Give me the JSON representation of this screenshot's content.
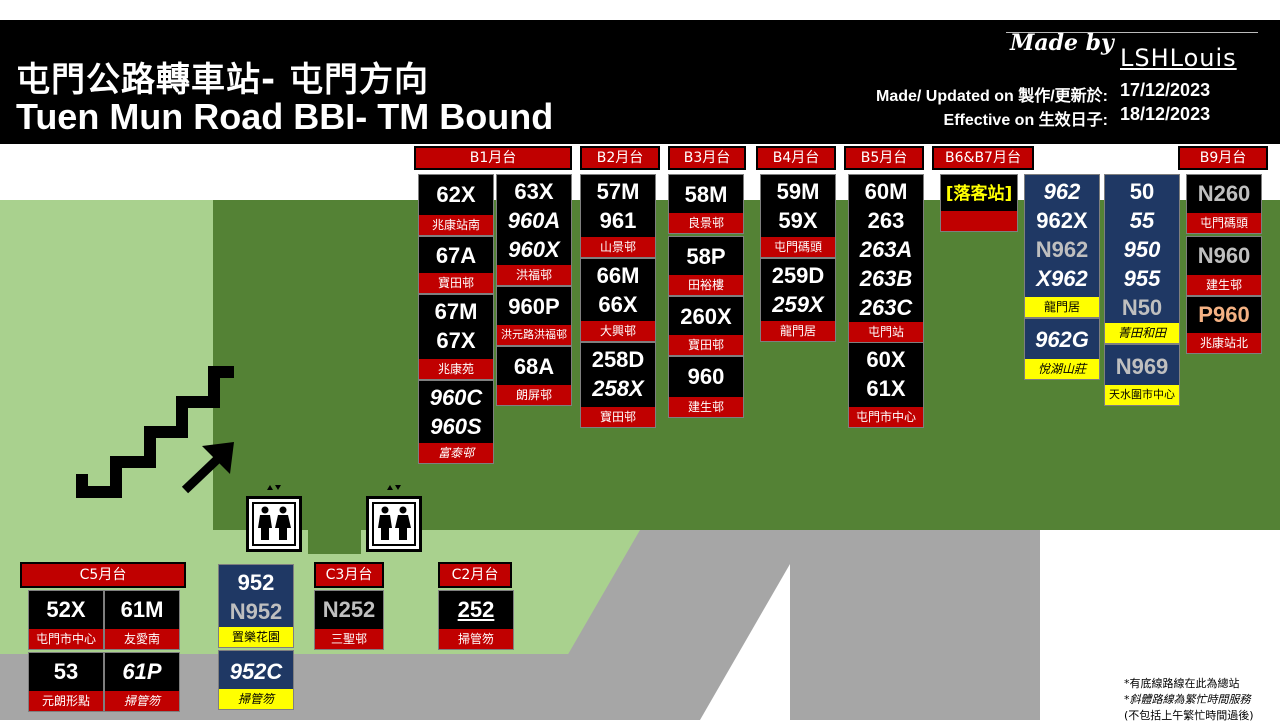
{
  "header": {
    "title_zh": "屯門公路轉車站- 屯門方向",
    "title_en": "Tuen Mun Road BBI- TM Bound",
    "made_by_label": "Made by",
    "author": "LSHLouis",
    "updated_label": "Made/ Updated on 製作/更新於:",
    "updated_date": "17/12/2023",
    "effective_label": "Effective on 生效日子:",
    "effective_date": "18/12/2023"
  },
  "colors": {
    "header_bg": "#000000",
    "platform_red": "#c00000",
    "grass_light": "#a9d18e",
    "grass_dark": "#548235",
    "road_grey": "#a6a6a6",
    "franchise_blue": "#1f3864",
    "terminus_yellow": "#ffff00"
  },
  "platforms": {
    "b1": {
      "label": "B1月台"
    },
    "b2": {
      "label": "B2月台"
    },
    "b3": {
      "label": "B3月台"
    },
    "b4": {
      "label": "B4月台"
    },
    "b5": {
      "label": "B5月台"
    },
    "b6b7": {
      "label": "B6&B7月台",
      "alight": "[落客站]"
    },
    "b9": {
      "label": "B9月台"
    },
    "c5": {
      "label": "C5月台"
    },
    "c3": {
      "label": "C3月台"
    },
    "c2": {
      "label": "C2月台"
    }
  },
  "cards": {
    "b1a": {
      "routes": [
        "62X"
      ],
      "dest": "兆康站南"
    },
    "b1b": {
      "routes": [
        "67A"
      ],
      "dest": "寶田邨"
    },
    "b1c": {
      "routes": [
        "67M",
        "67X"
      ],
      "dest": "兆康苑"
    },
    "b1d": {
      "routes": [
        "960C",
        "960S"
      ],
      "dest": "富泰邨"
    },
    "b1e": {
      "routes": [
        "63X",
        "960A",
        "960X"
      ],
      "dest": "洪福邨"
    },
    "b1f": {
      "routes": [
        "960P"
      ],
      "dest": "洪元路洪福邨"
    },
    "b1g": {
      "routes": [
        "68A"
      ],
      "dest": "朗屏邨"
    },
    "b2a": {
      "routes": [
        "57M",
        "961"
      ],
      "dest": "山景邨"
    },
    "b2b": {
      "routes": [
        "66M",
        "66X"
      ],
      "dest": "大興邨"
    },
    "b2c": {
      "routes": [
        "258D",
        "258X"
      ],
      "dest": "寶田邨"
    },
    "b3a": {
      "routes": [
        "58M"
      ],
      "dest": "良景邨"
    },
    "b3b": {
      "routes": [
        "58P"
      ],
      "dest": "田裕樓"
    },
    "b3c": {
      "routes": [
        "260X"
      ],
      "dest": "寶田邨"
    },
    "b3d": {
      "routes": [
        "960"
      ],
      "dest": "建生邨"
    },
    "b4a": {
      "routes": [
        "59M",
        "59X"
      ],
      "dest": "屯門碼頭"
    },
    "b4b": {
      "routes": [
        "259D",
        "259X"
      ],
      "dest": "龍門居"
    },
    "b5a": {
      "routes": [
        "60M",
        "263",
        "263A",
        "263B",
        "263C"
      ],
      "dest": "屯門站"
    },
    "b5b": {
      "routes": [
        "60X",
        "61X"
      ],
      "dest": "屯門市中心"
    },
    "b6a": {
      "routes": [
        "962",
        "962X",
        "N962",
        "X962"
      ],
      "dest": "龍門居"
    },
    "b6b": {
      "routes": [
        "962G"
      ],
      "dest": "悅湖山莊"
    },
    "b7a": {
      "routes": [
        "50",
        "55",
        "950",
        "955",
        "N50"
      ],
      "dest": "菁田和田"
    },
    "b7b": {
      "routes": [
        "N969"
      ],
      "dest": "天水圍市中心"
    },
    "b9a": {
      "routes": [
        "N260"
      ],
      "dest": "屯門碼頭"
    },
    "b9b": {
      "routes": [
        "N960"
      ],
      "dest": "建生邨"
    },
    "b9c": {
      "routes": [
        "P960"
      ],
      "dest": "兆康站北"
    },
    "c5a": {
      "routes": [
        "52X"
      ],
      "dest": "屯門市中心"
    },
    "c5b": {
      "routes": [
        "61M"
      ],
      "dest": "友愛南"
    },
    "c5c": {
      "routes": [
        "53"
      ],
      "dest": "元朗形點"
    },
    "c5d": {
      "routes": [
        "61P"
      ],
      "dest": "掃管笏"
    },
    "c4a": {
      "routes": [
        "952",
        "N952"
      ],
      "dest": "置樂花園"
    },
    "c4b": {
      "routes": [
        "952C"
      ],
      "dest": "掃管笏"
    },
    "c3a": {
      "routes": [
        "N252"
      ],
      "dest": "三聖邨"
    },
    "c2a": {
      "routes": [
        "252"
      ],
      "dest": "掃管笏"
    }
  },
  "notes": {
    "line1": "*有底線路線在此為總站",
    "line2": "*斜體路線為繁忙時間服務",
    "line3": "(不包括上午繁忙時間過後)"
  }
}
